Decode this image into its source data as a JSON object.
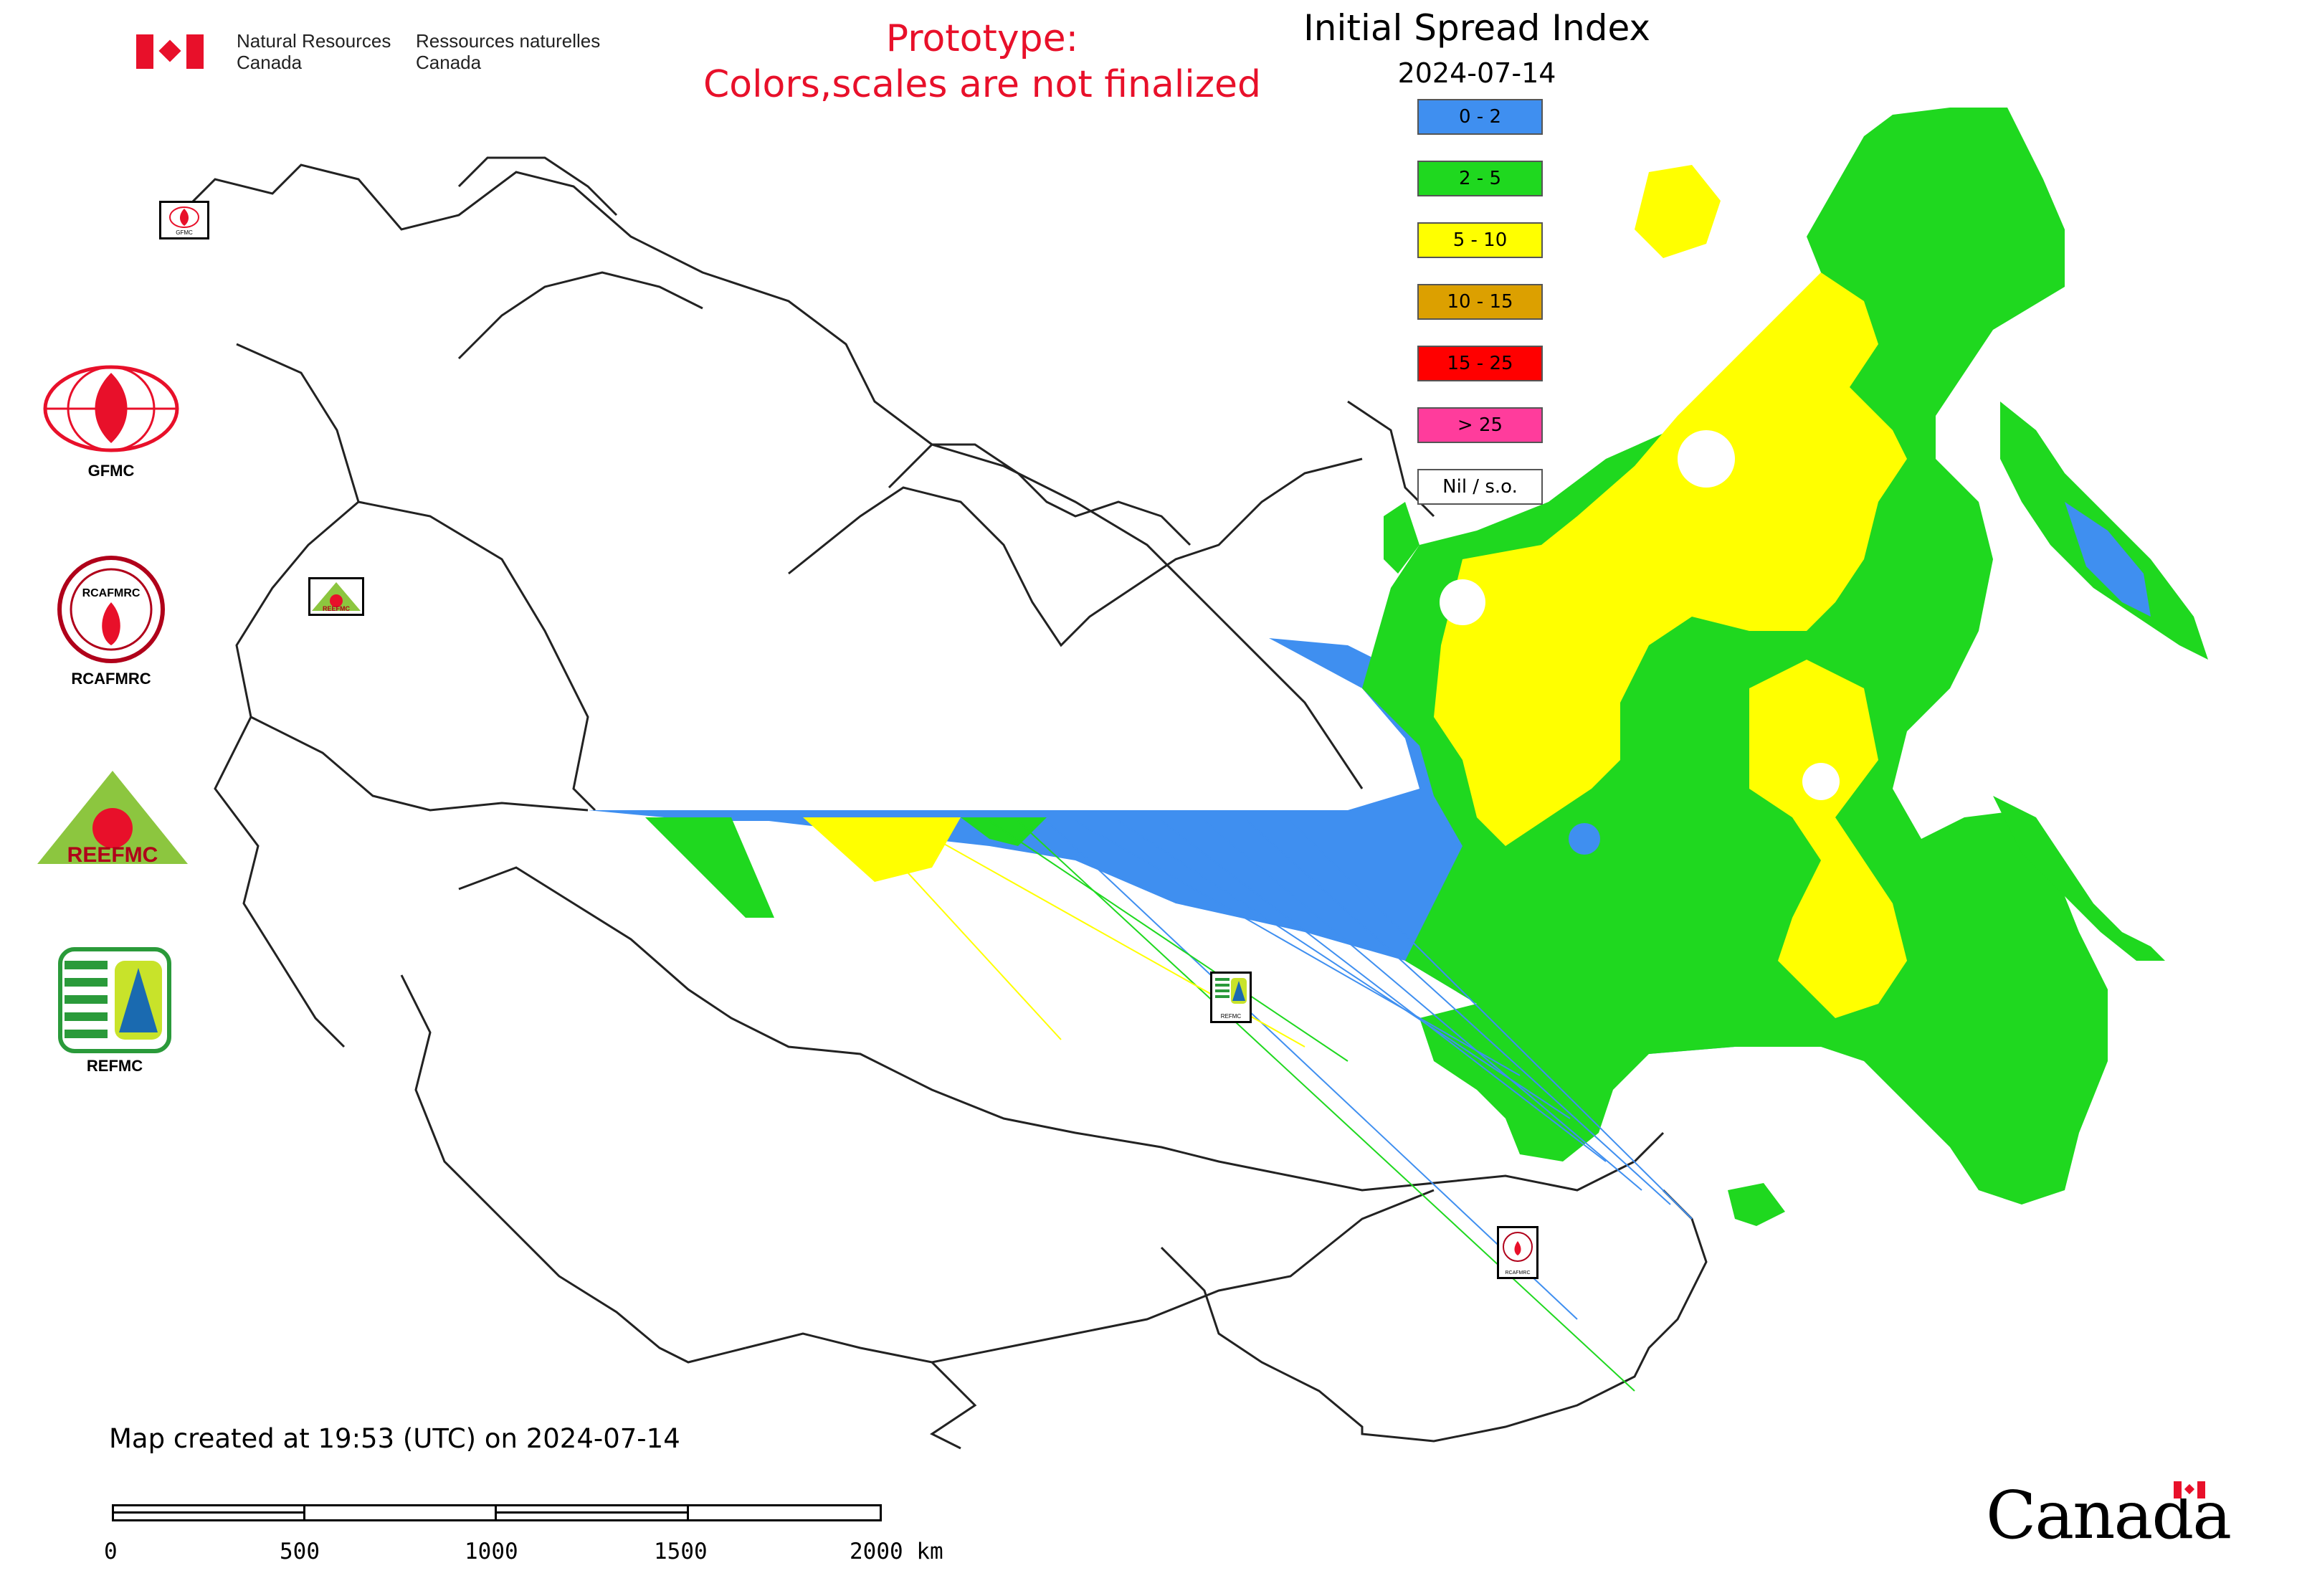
{
  "header": {
    "dept_en_line1": "Natural Resources",
    "dept_en_line2": "Canada",
    "dept_fr_line1": "Ressources naturelles",
    "dept_fr_line2": "Canada",
    "prototype_line1": "Prototype:",
    "prototype_line2": "Colors,scales are not finalized",
    "title": "Initial Spread Index",
    "date": "2024-07-14"
  },
  "legend": [
    {
      "label": "0 - 2",
      "color": "#3f8ff0"
    },
    {
      "label": "2 - 5",
      "color": "#1fd81f"
    },
    {
      "label": "5 - 10",
      "color": "#ffff00"
    },
    {
      "label": "10 - 15",
      "color": "#dca000"
    },
    {
      "label": "15 - 25",
      "color": "#ff0000"
    },
    {
      "label": "> 25",
      "color": "#ff3c9c"
    },
    {
      "label": "Nil / s.o.",
      "color": "#ffffff"
    }
  ],
  "logos": {
    "gfmc": "GFMC",
    "rcafmrc": "RCAFMRC",
    "reefmc": "REEFMC",
    "refmc": "REFMC",
    "rcafmrc_badge": "RCAFMRC",
    "reefmc_badge": "REEFMC",
    "refmc_badge": "REFMC",
    "gfmc_badge": "GFMC"
  },
  "footer": {
    "created": "Map created at 19:53 (UTC) on 2024-07-14",
    "scale_ticks": [
      "0",
      "500",
      "1000",
      "1500",
      "2000 km"
    ],
    "wordmark": "Canada"
  }
}
